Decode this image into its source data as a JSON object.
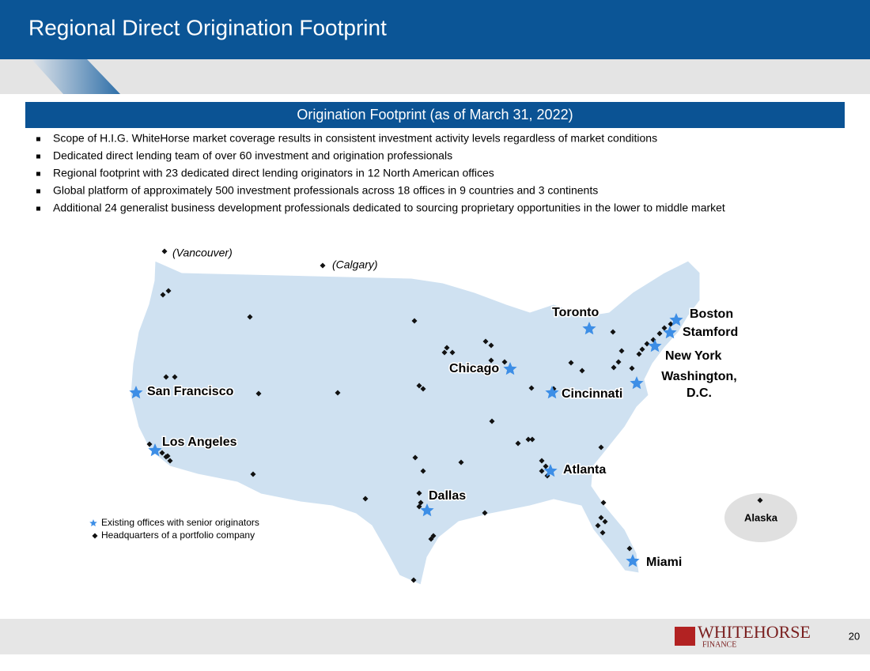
{
  "header": {
    "title": "Regional Direct Origination Footprint"
  },
  "section": {
    "heading": "Origination Footprint (as of March 31, 2022)"
  },
  "bullets": [
    "Scope of H.I.G. WhiteHorse market coverage results in consistent investment activity levels regardless of market conditions",
    "Dedicated direct lending team of over 60 investment and origination professionals",
    "Regional footprint with 23 dedicated direct lending originators in 12 North American offices",
    "Global platform of approximately 500 investment professionals across 18 offices in 9 countries and 3 continents",
    "Additional 24 generalist business development professionals dedicated to sourcing proprietary opportunities in the lower to middle market"
  ],
  "map": {
    "offices": [
      {
        "label": [
          "Toronto"
        ]
      },
      {
        "label": [
          "Boston"
        ]
      },
      {
        "label": [
          "Stamford"
        ]
      },
      {
        "label": [
          "New York"
        ]
      },
      {
        "label": [
          "Washington,",
          "D.C."
        ]
      },
      {
        "label": [
          "Chicago"
        ]
      },
      {
        "label": [
          "Cincinnati"
        ]
      },
      {
        "label": [
          "San Francisco"
        ]
      },
      {
        "label": [
          "Los Angeles"
        ]
      },
      {
        "label": [
          "Atlanta"
        ]
      },
      {
        "label": [
          "Dallas"
        ]
      },
      {
        "label": [
          "Miami"
        ]
      }
    ],
    "other_locations": [
      "(Vancouver)",
      "(Calgary)"
    ],
    "alaska": "Alaska",
    "legend": [
      "Existing offices with senior originators",
      "Headquarters of a portfolio company"
    ]
  },
  "footer": {
    "logo": "WHITEHORSE",
    "logo_sub": "FINANCE",
    "page": "20"
  }
}
